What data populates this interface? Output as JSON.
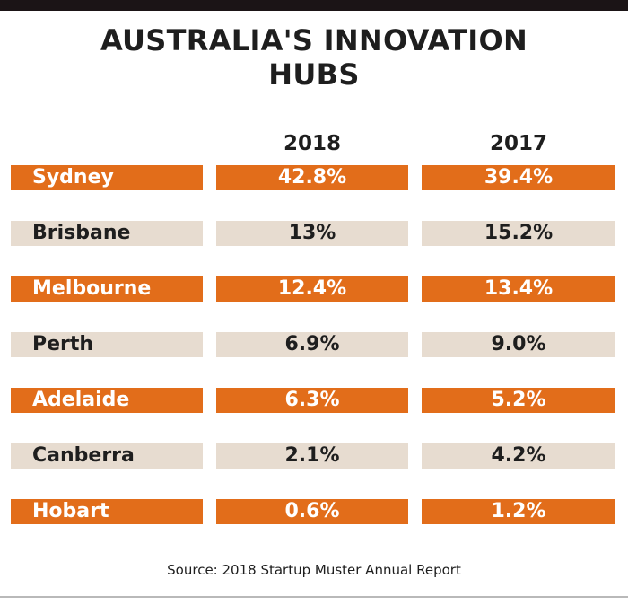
{
  "title_line1": "AUSTRALIA'S INNOVATION",
  "title_line2": "HUBS",
  "columns": [
    "2018",
    "2017"
  ],
  "source": "Source: 2018 Startup Muster Annual Report",
  "colors": {
    "orange": "#e26d1a",
    "beige": "#e7dcd0",
    "topbar": "#1b1416"
  },
  "chart_data": {
    "type": "table",
    "title": "AUSTRALIA'S INNOVATION HUBS",
    "columns": [
      "2018",
      "2017"
    ],
    "rows": [
      {
        "city": "Sydney",
        "v2018": "42.8%",
        "v2017": "39.4%"
      },
      {
        "city": "Brisbane",
        "v2018": "13%",
        "v2017": "15.2%"
      },
      {
        "city": "Melbourne",
        "v2018": "12.4%",
        "v2017": "13.4%"
      },
      {
        "city": "Perth",
        "v2018": "6.9%",
        "v2017": "9.0%"
      },
      {
        "city": "Adelaide",
        "v2018": "6.3%",
        "v2017": "5.2%"
      },
      {
        "city": "Canberra",
        "v2018": "2.1%",
        "v2017": "4.2%"
      },
      {
        "city": "Hobart",
        "v2018": "0.6%",
        "v2017": "1.2%"
      }
    ],
    "source": "Source: 2018 Startup Muster Annual Report"
  }
}
